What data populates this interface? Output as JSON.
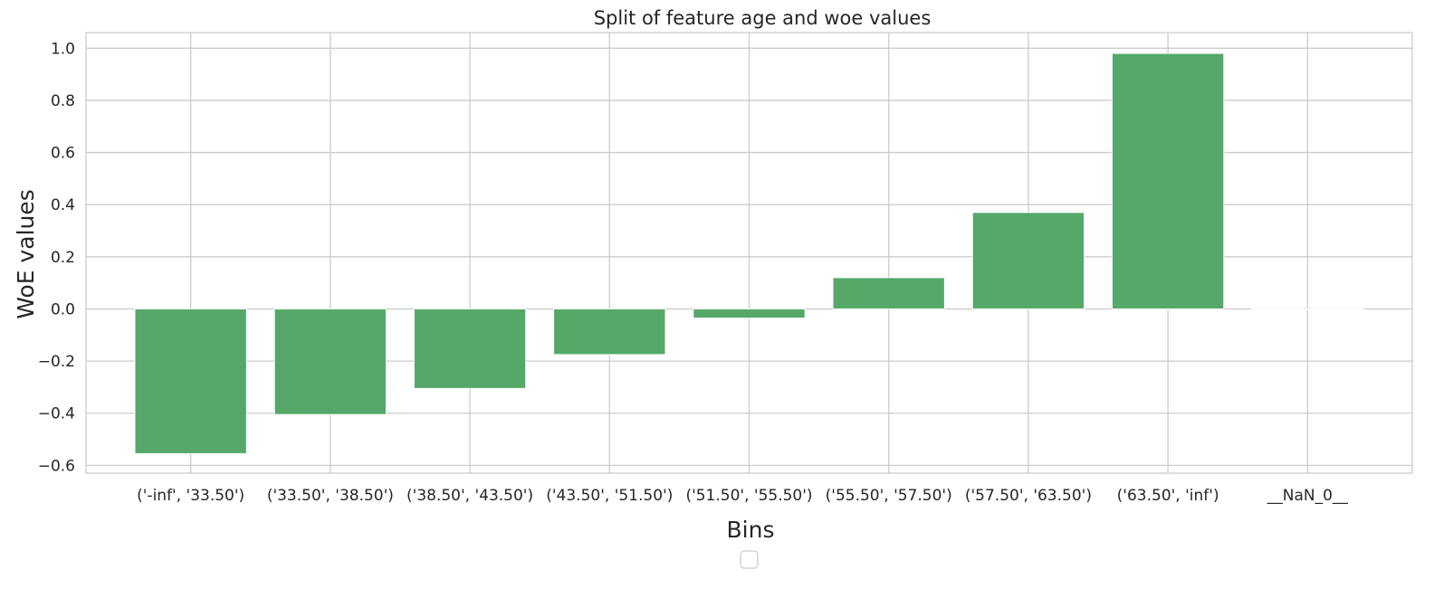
{
  "chart_data": {
    "type": "bar",
    "title": "Split of feature age and woe values",
    "xlabel": "Bins",
    "ylabel": "WoE values",
    "categories": [
      "('-inf', '33.50')",
      "('33.50', '38.50')",
      "('38.50', '43.50')",
      "('43.50', '51.50')",
      "('51.50', '55.50')",
      "('55.50', '57.50')",
      "('57.50', '63.50')",
      "('63.50', 'inf')",
      "__NaN_0__"
    ],
    "values": [
      -0.555,
      -0.405,
      -0.305,
      -0.175,
      -0.035,
      0.12,
      0.37,
      0.98,
      0.0
    ],
    "ylim": [
      -0.63,
      1.06
    ],
    "yticks": [
      -0.6,
      -0.4,
      -0.2,
      0.0,
      0.2,
      0.4,
      0.6,
      0.8,
      1.0
    ],
    "ytick_labels": [
      "−0.6",
      "−0.4",
      "−0.2",
      "0.0",
      "0.2",
      "0.4",
      "0.6",
      "0.8",
      "1.0"
    ],
    "bar_color": "#55a868",
    "grid": true,
    "legend": "empty box, bottom-center"
  }
}
